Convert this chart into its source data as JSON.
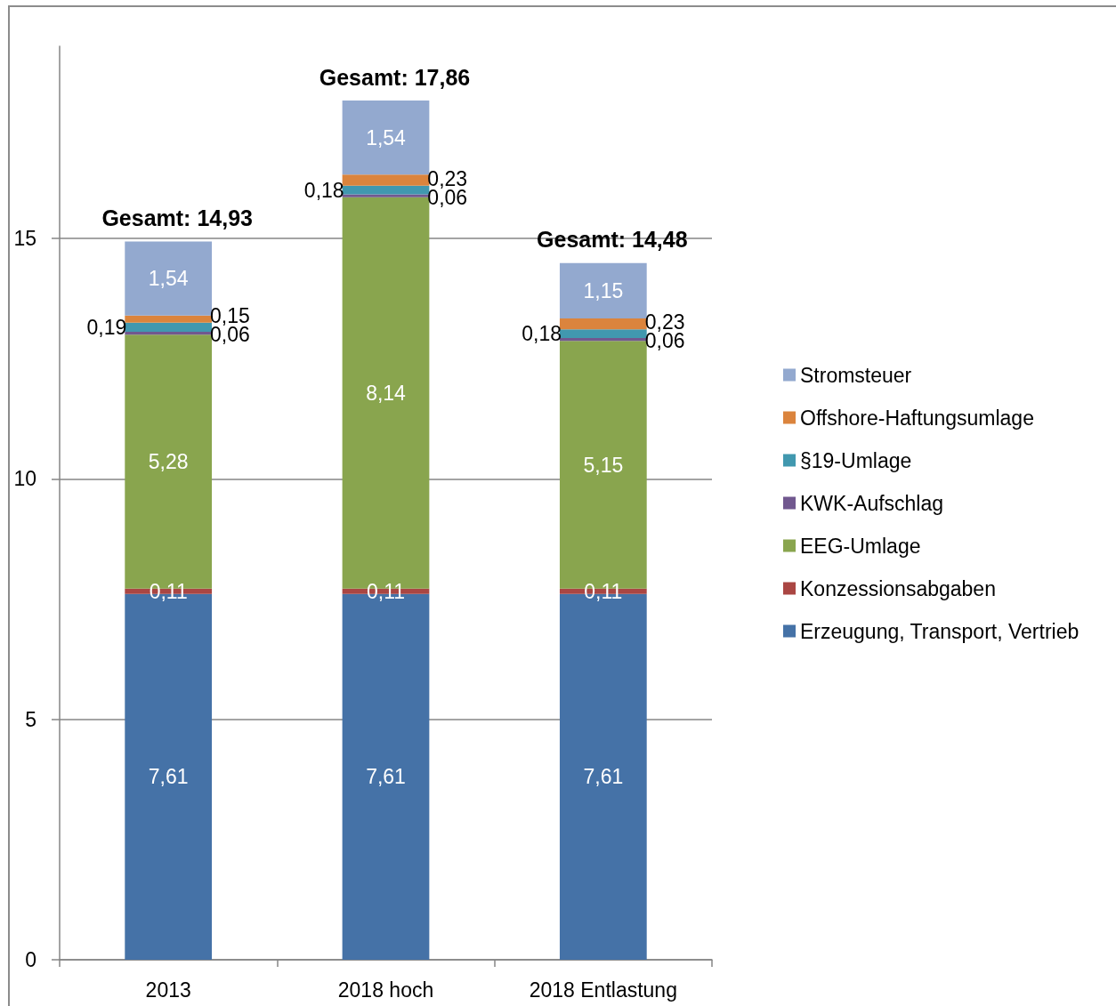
{
  "chart_data": {
    "type": "bar",
    "stacked": true,
    "categories": [
      "2013",
      "2018 hoch",
      "2018 Entlastung"
    ],
    "series": [
      {
        "name": "Erzeugung, Transport, Vertrieb",
        "color": "#4572a7",
        "values": [
          7.61,
          7.61,
          7.61
        ],
        "value_labels": [
          "7,61",
          "7,61",
          "7,61"
        ]
      },
      {
        "name": "Konzessionsabgaben",
        "color": "#aa4643",
        "values": [
          0.11,
          0.11,
          0.11
        ],
        "value_labels": [
          "0,11",
          "0,11",
          "0,11"
        ]
      },
      {
        "name": "EEG-Umlage",
        "color": "#89a54e",
        "values": [
          5.28,
          8.14,
          5.15
        ],
        "value_labels": [
          "5,28",
          "8,14",
          "5,15"
        ]
      },
      {
        "name": "KWK-Aufschlag",
        "color": "#71588f",
        "values": [
          0.06,
          0.06,
          0.06
        ],
        "value_labels": [
          "0,06",
          "0,06",
          "0,06"
        ]
      },
      {
        "name": "§19-Umlage",
        "color": "#4198af",
        "values": [
          0.19,
          0.18,
          0.18
        ],
        "value_labels": [
          "0,19",
          "0,18",
          "0,18"
        ]
      },
      {
        "name": "Offshore-Haftungsumlage",
        "color": "#db843d",
        "values": [
          0.15,
          0.23,
          0.23
        ],
        "value_labels": [
          "0,15",
          "0,23",
          "0,23"
        ]
      },
      {
        "name": "Stromsteuer",
        "color": "#93a9cf",
        "values": [
          1.54,
          1.54,
          1.15
        ],
        "value_labels": [
          "1,54",
          "1,54",
          "1,15"
        ]
      }
    ],
    "totals": [
      "Gesamt: 14,93",
      "Gesamt: 17,86",
      "Gesamt: 14,48"
    ],
    "ylim": [
      0,
      19
    ],
    "yticks": [
      0,
      5,
      10,
      15
    ],
    "grid": "y",
    "legend": "right"
  }
}
